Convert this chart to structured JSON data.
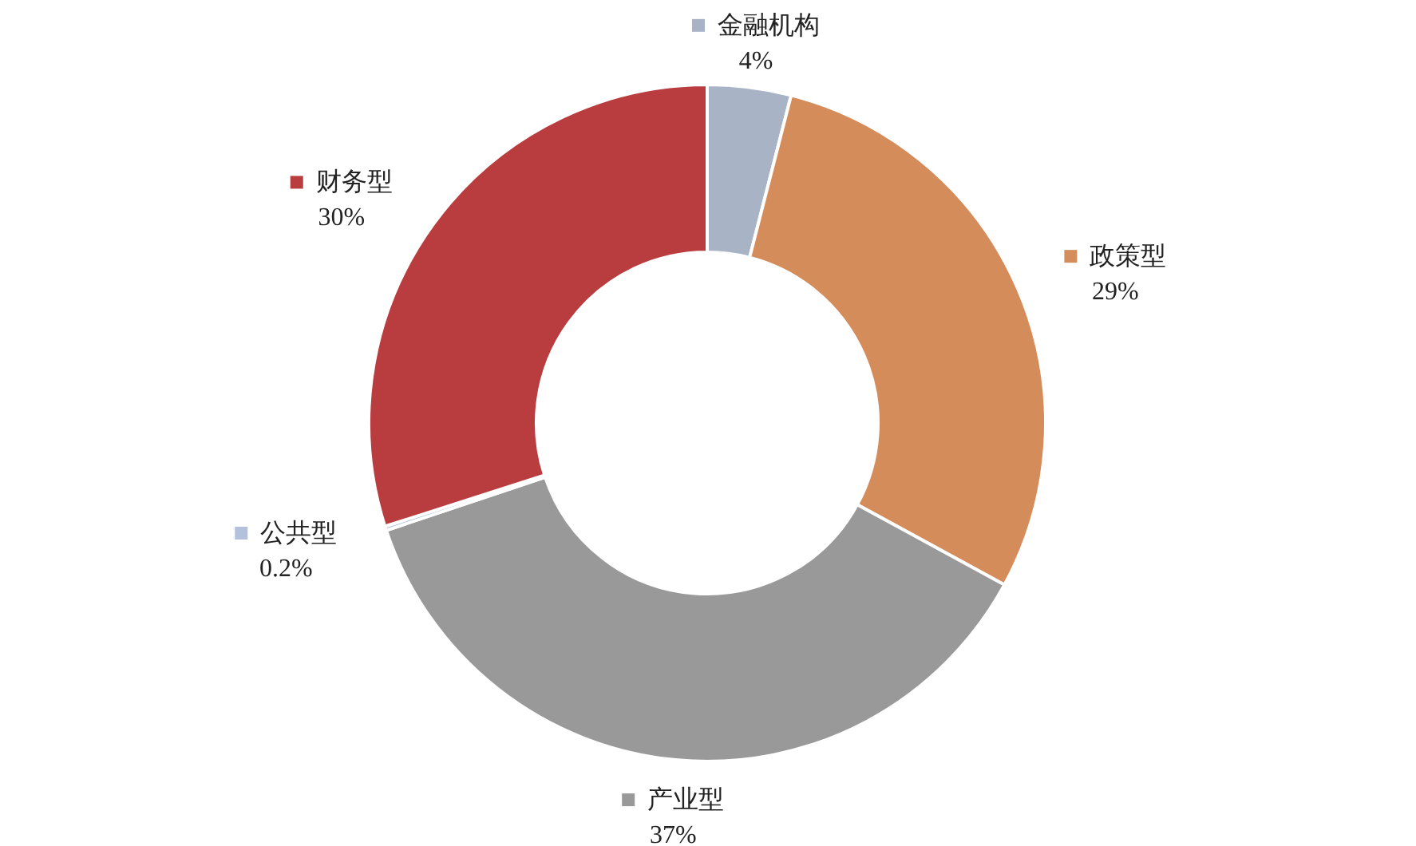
{
  "chart_data": {
    "type": "donut",
    "categories": [
      "金融机构",
      "政策型",
      "产业型",
      "公共型",
      "财务型"
    ],
    "values": [
      4,
      29,
      37,
      0.2,
      30
    ],
    "value_labels": [
      "4%",
      "29%",
      "37%",
      "0.2%",
      "30%"
    ],
    "colors": [
      "#a8b4c6",
      "#d58c5b",
      "#999999",
      "#b3c1dd",
      "#b93c3e"
    ],
    "legend": true
  }
}
